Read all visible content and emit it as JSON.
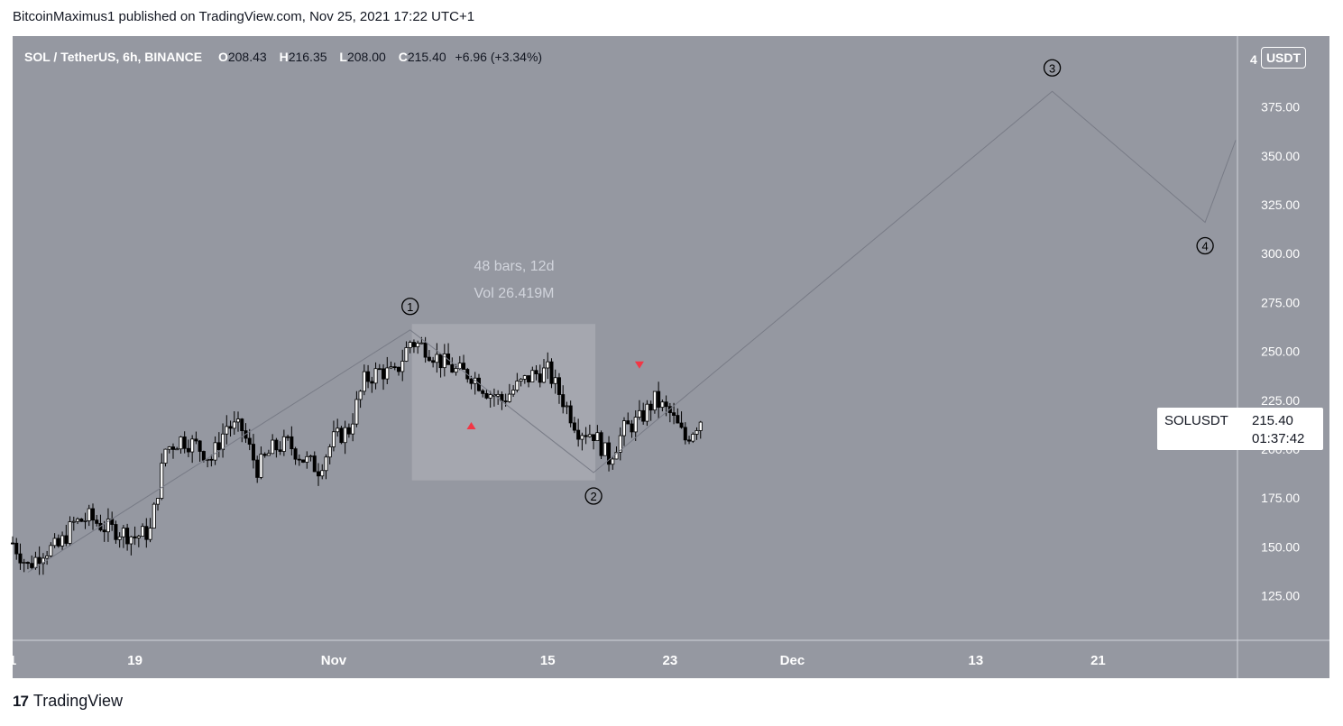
{
  "publisher_line": "BitcoinMaximus1 published on TradingView.com, Nov 25, 2021 17:22 UTC+1",
  "legend": {
    "symbol": "SOL / TetherUS, 6h, BINANCE",
    "open_key": "O",
    "open": "208.43",
    "high_key": "H",
    "high": "216.35",
    "low_key": "L",
    "low": "208.00",
    "close_key": "C",
    "close": "215.40",
    "change": "+6.96 (+3.34%)"
  },
  "currency_badge": "USDT",
  "price_tag": {
    "symbol": "SOLUSDT",
    "price": "215.40",
    "countdown": "01:37:42"
  },
  "measure": {
    "bars": "48 bars, 12d",
    "volume": "Vol 26.419M"
  },
  "wave_labels": [
    "1",
    "2",
    "3",
    "4"
  ],
  "footer": {
    "brand": "TradingView",
    "logo_glyph": "17"
  },
  "colors": {
    "background": "#9598a1",
    "candle_up": "#ffffff",
    "candle_down": "#000000",
    "wave_line": "#787b86",
    "marker": "#f23645",
    "measure_box": "#a6a9b0"
  },
  "chart_data": {
    "type": "candlestick",
    "title": "SOL / TetherUS, 6h, BINANCE",
    "y_ticks": [
      125,
      150,
      175,
      200,
      225,
      250,
      275,
      300,
      325,
      350,
      375
    ],
    "y_tick_labels": [
      "125.00",
      "150.00",
      "175.00",
      "200.00",
      "225.00",
      "250.00",
      "275.00",
      "300.00",
      "325.00",
      "350.00",
      "375.00"
    ],
    "y_top_partial_label": "4",
    "ylim": [
      100,
      410
    ],
    "x_tick_labels": [
      {
        "label": "1",
        "date": "2021-10-11"
      },
      {
        "label": "19",
        "date": "2021-10-19"
      },
      {
        "label": "Nov",
        "date": "2021-11-01"
      },
      {
        "label": "15",
        "date": "2021-11-15"
      },
      {
        "label": "23",
        "date": "2021-11-23"
      },
      {
        "label": "Dec",
        "date": "2021-12-01"
      },
      {
        "label": "13",
        "date": "2021-12-13"
      },
      {
        "label": "21",
        "date": "2021-12-21"
      }
    ],
    "x_range": [
      "2021-10-11",
      "2021-12-30"
    ],
    "ohlc_path": [
      [
        "2021-10-11",
        152
      ],
      [
        "2021-10-12",
        140
      ],
      [
        "2021-10-13",
        148
      ],
      [
        "2021-10-14",
        150
      ],
      [
        "2021-10-15",
        162
      ],
      [
        "2021-10-16",
        165
      ],
      [
        "2021-10-17",
        160
      ],
      [
        "2021-10-18",
        158
      ],
      [
        "2021-10-19",
        155
      ],
      [
        "2021-10-20",
        158
      ],
      [
        "2021-10-21",
        200
      ],
      [
        "2021-10-22",
        205
      ],
      [
        "2021-10-23",
        202
      ],
      [
        "2021-10-24",
        195
      ],
      [
        "2021-10-25",
        212
      ],
      [
        "2021-10-26",
        210
      ],
      [
        "2021-10-27",
        190
      ],
      [
        "2021-10-28",
        200
      ],
      [
        "2021-10-29",
        203
      ],
      [
        "2021-10-30",
        195
      ],
      [
        "2021-10-31",
        190
      ],
      [
        "2021-11-01",
        205
      ],
      [
        "2021-11-02",
        210
      ],
      [
        "2021-11-03",
        235
      ],
      [
        "2021-11-04",
        240
      ],
      [
        "2021-11-05",
        238
      ],
      [
        "2021-11-06",
        255
      ],
      [
        "2021-11-07",
        252
      ],
      [
        "2021-11-08",
        245
      ],
      [
        "2021-11-09",
        240
      ],
      [
        "2021-11-10",
        238
      ],
      [
        "2021-11-11",
        230
      ],
      [
        "2021-11-12",
        225
      ],
      [
        "2021-11-13",
        232
      ],
      [
        "2021-11-14",
        238
      ],
      [
        "2021-11-15",
        240
      ],
      [
        "2021-11-16",
        225
      ],
      [
        "2021-11-17",
        210
      ],
      [
        "2021-11-18",
        208
      ],
      [
        "2021-11-19",
        195
      ],
      [
        "2021-11-20",
        210
      ],
      [
        "2021-11-21",
        215
      ],
      [
        "2021-11-22",
        225
      ],
      [
        "2021-11-23",
        218
      ],
      [
        "2021-11-24",
        205
      ],
      [
        "2021-11-25",
        215.4
      ]
    ],
    "wave_path": [
      {
        "date": "2021-10-12",
        "price": 137
      },
      {
        "date": "2021-11-06",
        "price": 261,
        "label": "1"
      },
      {
        "date": "2021-11-18",
        "price": 188,
        "label": "2"
      },
      {
        "date": "2021-12-18",
        "price": 383,
        "label": "3"
      },
      {
        "date": "2021-12-28",
        "price": 316,
        "label": "4"
      },
      {
        "date": "2021-12-30",
        "price": 358
      }
    ],
    "measure_box": {
      "start": "2021-11-06",
      "end": "2021-11-18",
      "high": 264,
      "low": 184
    },
    "markers": [
      {
        "type": "triangle-up",
        "date": "2021-11-10",
        "price": 212
      },
      {
        "type": "triangle-down",
        "date": "2021-11-21",
        "price": 243
      }
    ],
    "last_price": 215.4
  }
}
